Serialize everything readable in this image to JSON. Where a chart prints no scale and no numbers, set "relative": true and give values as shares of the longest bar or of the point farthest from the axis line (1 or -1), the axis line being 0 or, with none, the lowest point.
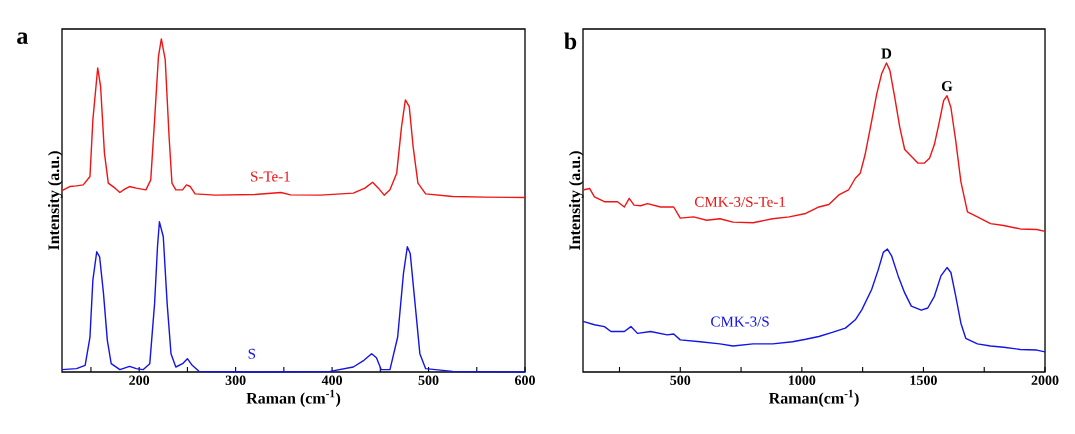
{
  "chart_data": [
    {
      "type": "line",
      "title": "a",
      "xlabel": "Raman (cm$^{-1}$)",
      "ylabel": "Intensity (a.u.)",
      "relative": true,
      "xlim": [
        120,
        600
      ],
      "xticks": [
        {
          "value": 150,
          "label": null
        },
        200,
        {
          "value": 250,
          "label": null
        },
        300,
        {
          "value": 350,
          "label": null
        },
        400,
        {
          "value": 450,
          "label": null
        },
        500,
        {
          "value": 550,
          "label": null
        },
        600
      ],
      "series": [
        {
          "name": "S-Te-1",
          "color": "#f01414",
          "x": [
            120,
            128,
            135,
            142,
            149,
            152,
            157,
            160,
            164,
            168,
            175,
            180,
            185,
            190,
            197,
            207,
            212,
            216,
            220,
            223,
            227,
            231,
            234,
            238,
            245,
            249,
            253,
            258,
            279,
            320,
            347,
            357,
            388,
            422,
            434,
            442,
            448,
            454,
            460,
            467,
            472,
            476,
            480,
            484,
            489,
            497,
            525,
            559,
            600
          ],
          "values": [
            0.545,
            0.557,
            0.559,
            0.562,
            0.587,
            0.757,
            0.913,
            0.858,
            0.657,
            0.567,
            0.552,
            0.539,
            0.549,
            0.557,
            0.552,
            0.547,
            0.577,
            0.757,
            0.948,
            1,
            0.938,
            0.707,
            0.567,
            0.547,
            0.547,
            0.562,
            0.557,
            0.535,
            0.531,
            0.533,
            0.539,
            0.532,
            0.531,
            0.537,
            0.552,
            0.57,
            0.552,
            0.531,
            0.547,
            0.597,
            0.737,
            0.817,
            0.797,
            0.677,
            0.567,
            0.535,
            0.527,
            0.525,
            0.524
          ]
        },
        {
          "name": "S",
          "color": "#1414e6",
          "x": [
            120,
            135,
            144,
            149,
            152,
            156,
            159,
            163,
            167,
            171,
            180,
            190,
            197,
            204,
            211,
            216,
            219,
            221,
            225,
            229,
            233,
            238,
            245,
            250,
            255,
            262,
            320,
            398,
            422,
            433,
            441,
            446,
            451,
            460,
            468,
            474,
            478,
            481,
            486,
            491,
            497,
            525,
            600
          ],
          "values": [
            0.007,
            0.01,
            0.02,
            0.105,
            0.276,
            0.361,
            0.346,
            0.236,
            0.095,
            0.025,
            0.007,
            0.017,
            0.01,
            0.007,
            0.025,
            0.206,
            0.376,
            0.451,
            0.406,
            0.206,
            0.055,
            0.015,
            0.025,
            0.04,
            0.02,
            0.002,
            0,
            0.002,
            0.015,
            0.035,
            0.055,
            0.043,
            0.007,
            0.007,
            0.105,
            0.296,
            0.376,
            0.356,
            0.206,
            0.055,
            0.01,
            0.002,
            0
          ]
        }
      ]
    },
    {
      "type": "line",
      "title": "b",
      "xlabel": "Raman(cm$^{-1}$)",
      "ylabel": "Intensity (a.u.)",
      "relative": true,
      "xlim": [
        100,
        2000
      ],
      "xticks": [
        {
          "value": 250,
          "label": null
        },
        500,
        {
          "value": 750,
          "label": null
        },
        1000,
        {
          "value": 1250,
          "label": null
        },
        1500,
        {
          "value": 1750,
          "label": null
        },
        2000
      ],
      "annotations": [
        {
          "text": "D",
          "x": 1348,
          "y": 1
        },
        {
          "text": "G",
          "x": 1597,
          "y": 0.894
        }
      ],
      "series": [
        {
          "name": "CMK-3/S-Te-1",
          "color": "#f01414",
          "x": [
            100,
            127,
            147,
            188,
            242,
            270,
            290,
            310,
            337,
            365,
            419,
            473,
            500,
            555,
            609,
            663,
            717,
            799,
            880,
            948,
            1016,
            1070,
            1111,
            1152,
            1192,
            1220,
            1240,
            1260,
            1287,
            1308,
            1328,
            1348,
            1362,
            1382,
            1403,
            1423,
            1450,
            1477,
            1504,
            1525,
            1545,
            1566,
            1583,
            1597,
            1613,
            1633,
            1654,
            1681,
            1722,
            1776,
            1830,
            1898,
            1966,
            2000
          ],
          "values": [
            0.589,
            0.594,
            0.567,
            0.551,
            0.551,
            0.534,
            0.562,
            0.54,
            0.538,
            0.545,
            0.534,
            0.534,
            0.498,
            0.502,
            0.491,
            0.496,
            0.485,
            0.483,
            0.496,
            0.502,
            0.513,
            0.534,
            0.542,
            0.573,
            0.589,
            0.627,
            0.643,
            0.703,
            0.812,
            0.9,
            0.965,
            1,
            0.976,
            0.889,
            0.791,
            0.72,
            0.698,
            0.676,
            0.676,
            0.692,
            0.736,
            0.812,
            0.878,
            0.894,
            0.856,
            0.747,
            0.616,
            0.518,
            0.502,
            0.48,
            0.474,
            0.463,
            0.461,
            0.455
          ]
        },
        {
          "name": "CMK-3/S",
          "color": "#1414e6",
          "x": [
            100,
            147,
            188,
            215,
            270,
            297,
            324,
            378,
            446,
            473,
            500,
            582,
            663,
            717,
            799,
            880,
            962,
            1016,
            1070,
            1125,
            1179,
            1220,
            1247,
            1287,
            1315,
            1335,
            1352,
            1369,
            1396,
            1423,
            1450,
            1491,
            1518,
            1545,
            1572,
            1597,
            1613,
            1633,
            1654,
            1674,
            1722,
            1776,
            1830,
            1898,
            1966,
            2000
          ],
          "values": [
            0.164,
            0.153,
            0.147,
            0.131,
            0.131,
            0.147,
            0.125,
            0.131,
            0.12,
            0.123,
            0.104,
            0.098,
            0.091,
            0.084,
            0.091,
            0.091,
            0.098,
            0.106,
            0.115,
            0.128,
            0.142,
            0.169,
            0.202,
            0.267,
            0.333,
            0.387,
            0.398,
            0.376,
            0.311,
            0.256,
            0.213,
            0.2,
            0.207,
            0.245,
            0.311,
            0.338,
            0.322,
            0.245,
            0.158,
            0.109,
            0.091,
            0.084,
            0.08,
            0.073,
            0.071,
            0.065
          ]
        }
      ]
    }
  ]
}
